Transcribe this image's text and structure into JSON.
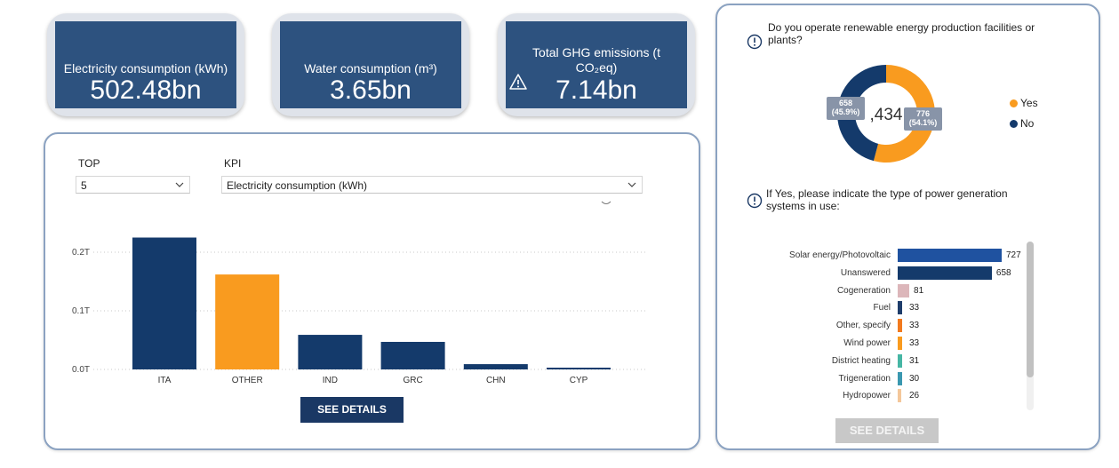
{
  "kpis": [
    {
      "label_lines": [
        "Electricity consumption (kWh)"
      ],
      "value": "502.48bn"
    },
    {
      "label_lines": [
        "Water consumption (m³)"
      ],
      "value": "3.65bn"
    },
    {
      "label_lines": [
        "Total GHG emissions (t",
        "CO₂eq)"
      ],
      "value": "7.14bn",
      "icon": "warning-triangle-icon"
    }
  ],
  "filters": {
    "top_label": "TOP",
    "top_value": "5",
    "kpi_label": "KPI",
    "kpi_value": "Electricity consumption (kWh)"
  },
  "see_details_label": "SEE DETAILS",
  "chart_data": [
    {
      "type": "bar",
      "categories": [
        "ITA",
        "OTHER",
        "IND",
        "GRC",
        "CHN",
        "CYP"
      ],
      "values": [
        0.225,
        0.162,
        0.059,
        0.047,
        0.009,
        0.003
      ],
      "unit": "T",
      "yticks": [
        "0.0T",
        "0.1T",
        "0.2T"
      ],
      "ylim": [
        0,
        0.25
      ],
      "colors": [
        "#143a6b",
        "#f99b1f",
        "#143a6b",
        "#143a6b",
        "#143a6b",
        "#143a6b"
      ],
      "grid": true
    },
    {
      "type": "pie",
      "title": "Do you operate renewable energy production facilities or plants?",
      "center_label": ",434",
      "slices": [
        {
          "name": "Yes",
          "value": 776,
          "label": "776\n(54.1%)",
          "color": "#f99b1f"
        },
        {
          "name": "No",
          "value": 658,
          "label": "658\n(45.9%)",
          "color": "#143a6b"
        }
      ],
      "legend": "right"
    },
    {
      "type": "bar",
      "orientation": "horizontal",
      "title": "If Yes, please indicate the type of power generation systems in use:",
      "categories": [
        "Solar energy/Photovoltaic",
        "Unanswered",
        "Cogeneration",
        "Fuel",
        "Other, specify",
        "Wind power",
        "District heating",
        "Trigeneration",
        "Hydropower"
      ],
      "values": [
        727,
        658,
        81,
        33,
        33,
        33,
        31,
        30,
        26
      ],
      "colors": [
        "#1f52a0",
        "#143a6b",
        "#dcb6ba",
        "#1e3d6b",
        "#f27a1e",
        "#f99b1f",
        "#46b6a4",
        "#3a98b0",
        "#f4c79a"
      ]
    }
  ],
  "right_panel": {
    "q1": "Do you operate renewable energy production facilities or plants?",
    "q2": "If Yes, please indicate the type of power generation systems in use:",
    "see_details_label": "SEE DETAILS"
  }
}
